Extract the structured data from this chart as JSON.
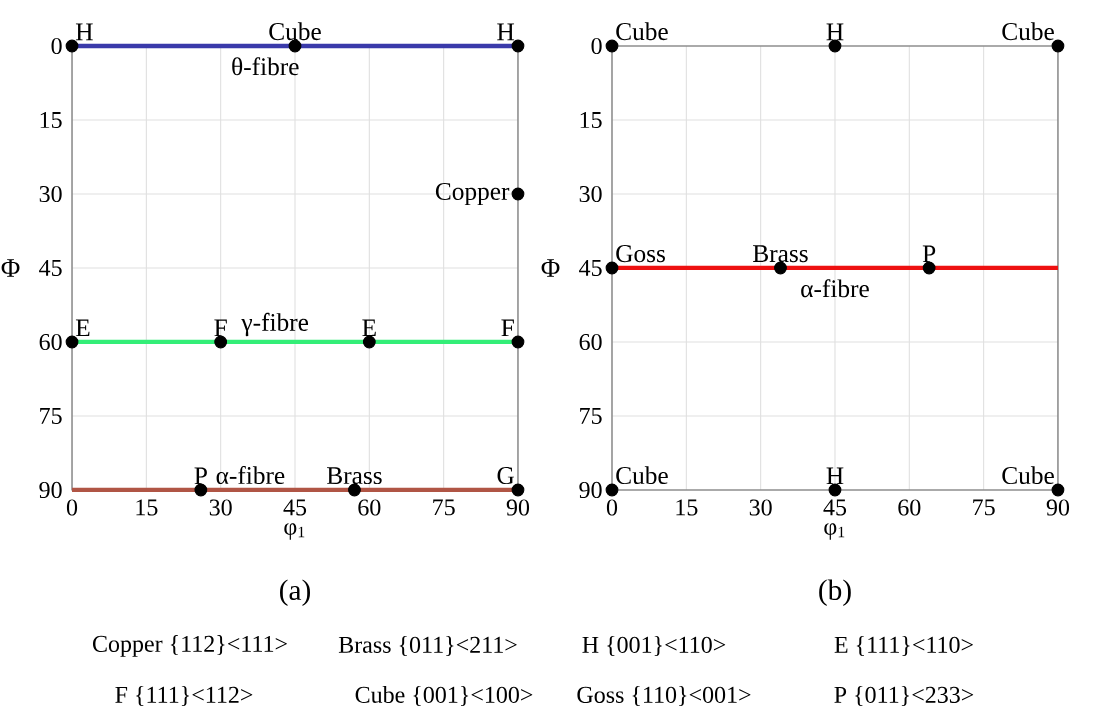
{
  "chart_data": [
    {
      "type": "scatter",
      "xlabel": "φ$_{1}$",
      "ylabel": "Φ",
      "xlim": [
        0,
        90
      ],
      "ylim": [
        90,
        0
      ],
      "xticks": [
        0,
        15,
        30,
        45,
        60,
        75,
        90
      ],
      "yticks": [
        0,
        15,
        30,
        45,
        60,
        75,
        90
      ],
      "grid": true,
      "marker": "circle",
      "series": [
        {
          "type": "line",
          "marker": "none",
          "color": "#3a3aaa",
          "x": [
            0,
            90
          ],
          "values": [
            0,
            0
          ]
        },
        {
          "type": "line",
          "marker": "none",
          "color": "#33ee77",
          "x": [
            0,
            90
          ],
          "values": [
            60,
            60
          ]
        },
        {
          "type": "line",
          "marker": "none",
          "color": "#b05545",
          "x": [
            0,
            90
          ],
          "values": [
            90,
            90
          ]
        },
        {
          "type": "scatter",
          "color": "#000000",
          "x": [
            0,
            45,
            90,
            90,
            0,
            30,
            60,
            90,
            26,
            57,
            90
          ],
          "values": [
            0,
            0,
            0,
            30,
            60,
            60,
            60,
            60,
            90,
            90,
            90
          ]
        }
      ],
      "annotations": [
        {
          "text": "H",
          "x": 0,
          "y": 0
        },
        {
          "text": "Cube",
          "x": 45,
          "y": 0
        },
        {
          "text": "H",
          "x": 90,
          "y": 0
        },
        {
          "text": "Copper",
          "x": 90,
          "y": 30
        },
        {
          "text": "E",
          "x": 0,
          "y": 60
        },
        {
          "text": "F",
          "x": 30,
          "y": 60
        },
        {
          "text": "E",
          "x": 60,
          "y": 60
        },
        {
          "text": "F",
          "x": 90,
          "y": 60
        },
        {
          "text": "P",
          "x": 26,
          "y": 90
        },
        {
          "text": "Brass",
          "x": 57,
          "y": 90
        },
        {
          "text": "G",
          "x": 90,
          "y": 90
        },
        {
          "text": "θ-fibre",
          "x": 39,
          "y": 0
        },
        {
          "text": "γ-fibre",
          "x": 41,
          "y": 60
        },
        {
          "text": "α-fibre",
          "x": 36,
          "y": 90
        },
        "(a)"
      ]
    },
    {
      "type": "scatter",
      "xlabel": "φ$_{1}$",
      "ylabel": "Φ",
      "xlim": [
        0,
        90
      ],
      "ylim": [
        90,
        0
      ],
      "xticks": [
        0,
        15,
        30,
        45,
        60,
        75,
        90
      ],
      "yticks": [
        0,
        15,
        30,
        45,
        60,
        75,
        90
      ],
      "grid": true,
      "marker": "circle",
      "series": [
        {
          "type": "line",
          "marker": "none",
          "color": "#ee1111",
          "x": [
            0,
            90
          ],
          "values": [
            45,
            45
          ]
        },
        {
          "type": "scatter",
          "color": "#000000",
          "x": [
            0,
            45,
            90,
            0,
            34,
            64,
            0,
            45,
            90
          ],
          "values": [
            0,
            0,
            0,
            45,
            45,
            45,
            90,
            90,
            90
          ]
        }
      ],
      "annotations": [
        {
          "text": "Cube",
          "x": 0,
          "y": 0
        },
        {
          "text": "H",
          "x": 45,
          "y": 0
        },
        {
          "text": "Cube",
          "x": 90,
          "y": 0
        },
        {
          "text": "Goss",
          "x": 0,
          "y": 45
        },
        {
          "text": "Brass",
          "x": 34,
          "y": 45
        },
        {
          "text": "P",
          "x": 64,
          "y": 45
        },
        {
          "text": "Cube",
          "x": 0,
          "y": 90
        },
        {
          "text": "H",
          "x": 45,
          "y": 90
        },
        {
          "text": "Cube",
          "x": 90,
          "y": 90
        },
        {
          "text": "α-fibre",
          "x": 45,
          "y": 45
        },
        "(b)"
      ]
    },
    {
      "type": "other",
      "annotations": [
        "Copper {112}<111>",
        "Brass {011}<211>",
        "H {001}<110>",
        "E {111}<110>",
        "F {111}<112>",
        "Cube {001}<100>",
        "Goss {110}<001>",
        "P {011}<233>"
      ]
    }
  ]
}
